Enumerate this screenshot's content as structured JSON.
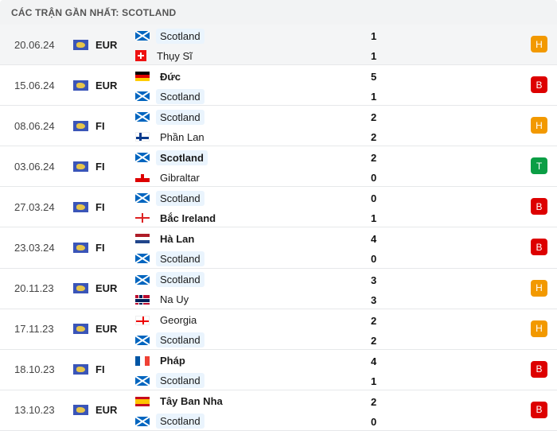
{
  "header": {
    "title": "CÁC TRẬN GẦN NHẤT: SCOTLAND"
  },
  "colors": {
    "draw": "#f29900",
    "loss": "#dd0000",
    "win": "#0b9e45",
    "highlight": "#eaf4fd"
  },
  "matches": [
    {
      "date": "20.06.24",
      "competition": "EUR",
      "home": {
        "name": "Scotland",
        "flag": "sco",
        "score": "1"
      },
      "away": {
        "name": "Thụy Sĩ",
        "flag": "sui",
        "score": "1"
      },
      "result": "H",
      "winner": ""
    },
    {
      "date": "15.06.24",
      "competition": "EUR",
      "home": {
        "name": "Đức",
        "flag": "ger",
        "score": "5"
      },
      "away": {
        "name": "Scotland",
        "flag": "sco",
        "score": "1"
      },
      "result": "B",
      "winner": "home"
    },
    {
      "date": "08.06.24",
      "competition": "FI",
      "home": {
        "name": "Scotland",
        "flag": "sco",
        "score": "2"
      },
      "away": {
        "name": "Phần Lan",
        "flag": "fin",
        "score": "2"
      },
      "result": "H",
      "winner": ""
    },
    {
      "date": "03.06.24",
      "competition": "FI",
      "home": {
        "name": "Scotland",
        "flag": "sco",
        "score": "2"
      },
      "away": {
        "name": "Gibraltar",
        "flag": "gib",
        "score": "0"
      },
      "result": "T",
      "winner": "home"
    },
    {
      "date": "27.03.24",
      "competition": "FI",
      "home": {
        "name": "Scotland",
        "flag": "sco",
        "score": "0"
      },
      "away": {
        "name": "Bắc Ireland",
        "flag": "nir",
        "score": "1"
      },
      "result": "B",
      "winner": "away"
    },
    {
      "date": "23.03.24",
      "competition": "FI",
      "home": {
        "name": "Hà Lan",
        "flag": "ned",
        "score": "4"
      },
      "away": {
        "name": "Scotland",
        "flag": "sco",
        "score": "0"
      },
      "result": "B",
      "winner": "home"
    },
    {
      "date": "20.11.23",
      "competition": "EUR",
      "home": {
        "name": "Scotland",
        "flag": "sco",
        "score": "3"
      },
      "away": {
        "name": "Na Uy",
        "flag": "nor",
        "score": "3"
      },
      "result": "H",
      "winner": ""
    },
    {
      "date": "17.11.23",
      "competition": "EUR",
      "home": {
        "name": "Georgia",
        "flag": "geo",
        "score": "2"
      },
      "away": {
        "name": "Scotland",
        "flag": "sco",
        "score": "2"
      },
      "result": "H",
      "winner": ""
    },
    {
      "date": "18.10.23",
      "competition": "FI",
      "home": {
        "name": "Pháp",
        "flag": "fra",
        "score": "4"
      },
      "away": {
        "name": "Scotland",
        "flag": "sco",
        "score": "1"
      },
      "result": "B",
      "winner": "home"
    },
    {
      "date": "13.10.23",
      "competition": "EUR",
      "home": {
        "name": "Tây Ban Nha",
        "flag": "esp",
        "score": "2"
      },
      "away": {
        "name": "Scotland",
        "flag": "sco",
        "score": "0"
      },
      "result": "B",
      "winner": "home"
    }
  ]
}
